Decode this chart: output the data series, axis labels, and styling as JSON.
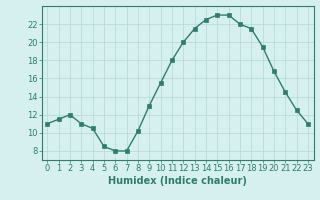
{
  "x": [
    0,
    1,
    2,
    3,
    4,
    5,
    6,
    7,
    8,
    9,
    10,
    11,
    12,
    13,
    14,
    15,
    16,
    17,
    18,
    19,
    20,
    21,
    22,
    23
  ],
  "y": [
    11,
    11.5,
    12,
    11,
    10.5,
    8.5,
    8,
    8,
    10.2,
    13,
    15.5,
    18,
    20,
    21.5,
    22.5,
    23,
    23,
    22,
    21.5,
    19.5,
    16.8,
    14.5,
    12.5,
    11
  ],
  "line_color": "#2e7d6e",
  "marker": "s",
  "marker_size": 2.5,
  "bg_color": "#d6f0ef",
  "grid_color": "#b8dbd9",
  "xlabel": "Humidex (Indice chaleur)",
  "ylim": [
    7,
    24
  ],
  "xlim": [
    -0.5,
    23.5
  ],
  "yticks": [
    8,
    10,
    12,
    14,
    16,
    18,
    20,
    22
  ],
  "xticks": [
    0,
    1,
    2,
    3,
    4,
    5,
    6,
    7,
    8,
    9,
    10,
    11,
    12,
    13,
    14,
    15,
    16,
    17,
    18,
    19,
    20,
    21,
    22,
    23
  ],
  "xtick_labels": [
    "0",
    "1",
    "2",
    "3",
    "4",
    "5",
    "6",
    "7",
    "8",
    "9",
    "10",
    "11",
    "12",
    "13",
    "14",
    "15",
    "16",
    "17",
    "18",
    "19",
    "20",
    "21",
    "22",
    "23"
  ],
  "tick_fontsize": 6,
  "xlabel_fontsize": 7
}
